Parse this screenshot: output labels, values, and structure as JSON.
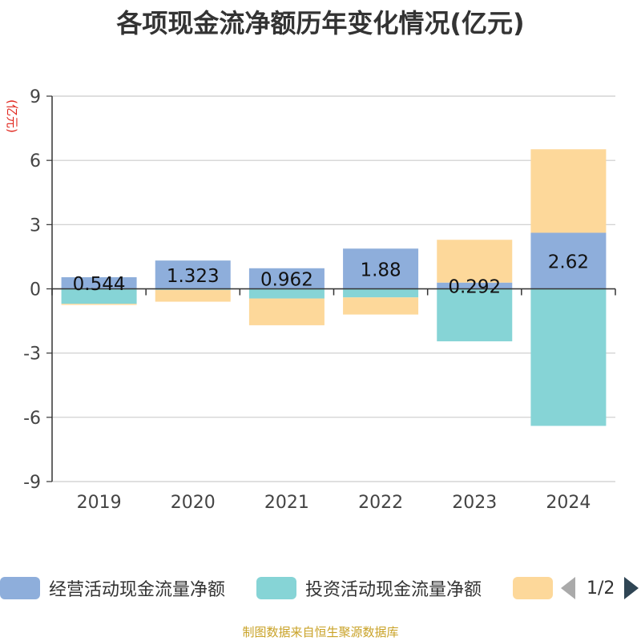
{
  "chart_data": {
    "type": "bar",
    "stacked": true,
    "title": "各项现金流净额历年变化情况(亿元)",
    "ylabel": "(亿元)",
    "categories": [
      "2019",
      "2020",
      "2021",
      "2022",
      "2023",
      "2024"
    ],
    "ylim": [
      -9,
      9
    ],
    "yticks": [
      -9,
      -6,
      -3,
      0,
      3,
      6,
      9
    ],
    "grid": true,
    "legend_position": "bottom",
    "series": [
      {
        "name": "经营活动现金流量净额",
        "color": "#8eaedb",
        "values": [
          0.544,
          1.323,
          0.962,
          1.88,
          0.292,
          2.62
        ],
        "data_labels": [
          "0.544",
          "1.323",
          "0.962",
          "1.88",
          "0.292",
          "2.62"
        ]
      },
      {
        "name": "投资活动现金流量净额",
        "color": "#86d4d6",
        "values": [
          -0.7,
          -0.05,
          -0.45,
          -0.4,
          -2.45,
          -6.4
        ]
      },
      {
        "name": "",
        "color": "#fdd89a",
        "values": [
          -0.05,
          -0.55,
          -1.25,
          -0.8,
          2.0,
          3.9
        ]
      }
    ]
  },
  "legend_pager": {
    "text": "1/2",
    "prev_icon": "chevron-left-icon",
    "next_icon": "chevron-right-icon"
  },
  "source_note": "制图数据来自恒生聚源数据库"
}
